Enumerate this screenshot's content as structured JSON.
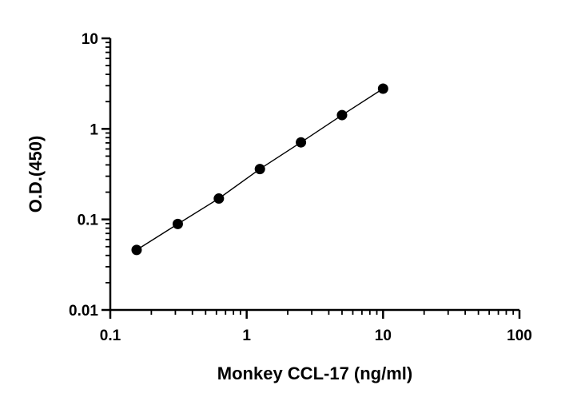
{
  "chart_data": {
    "type": "scatter",
    "xlabel": "Monkey CCL-17 (ng/ml)",
    "ylabel": "O.D.(450)",
    "xscale": "log",
    "yscale": "log",
    "xlim": [
      0.1,
      100
    ],
    "ylim": [
      0.01,
      10
    ],
    "x_ticks": [
      0.1,
      1,
      10,
      100
    ],
    "x_tick_labels": [
      "0.1",
      "1",
      "10",
      "100"
    ],
    "y_ticks": [
      0.01,
      0.1,
      1,
      10
    ],
    "y_tick_labels": [
      "0.01",
      "0.1",
      "1",
      "10"
    ],
    "grid": false,
    "legend": "none",
    "fit_line": true,
    "series": [
      {
        "x": [
          0.156,
          0.3125,
          0.625,
          1.25,
          2.5,
          5,
          10
        ],
        "y": [
          0.046,
          0.089,
          0.17,
          0.36,
          0.71,
          1.42,
          2.78
        ]
      }
    ],
    "colors": {
      "marker": "#000000",
      "line": "#000000",
      "axis": "#000000"
    }
  }
}
